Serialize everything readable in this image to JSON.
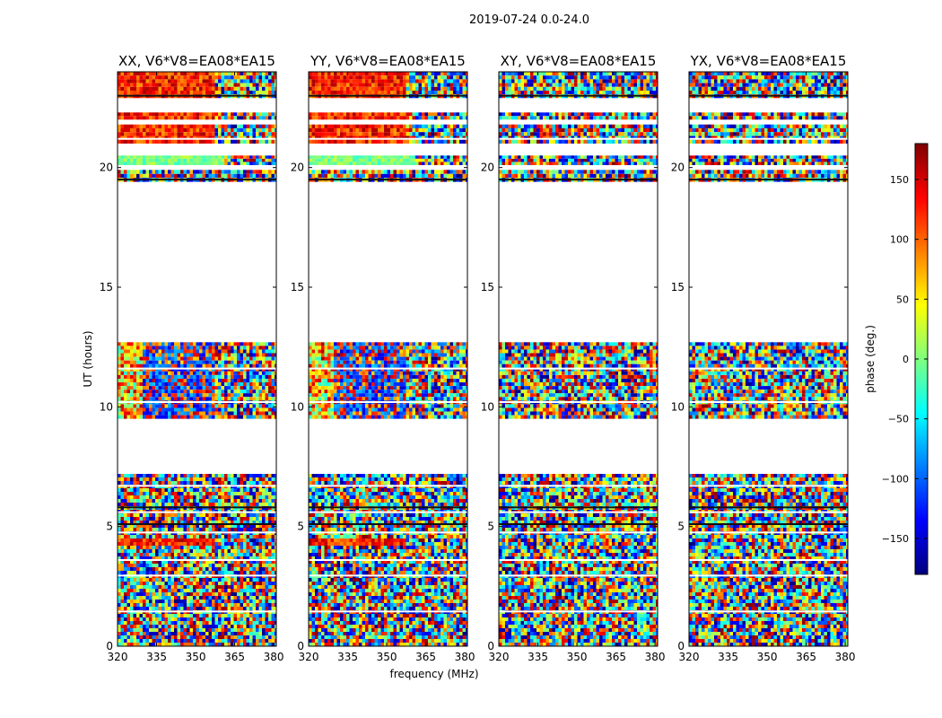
{
  "figure": {
    "suptitle": "2019-07-24 0.0-24.0",
    "xlabel": "frequency (MHz)",
    "ylabel": "UT (hours)"
  },
  "colorbar": {
    "label": "phase (deg.)",
    "range": [
      -180,
      180
    ],
    "ticks": [
      150,
      100,
      50,
      0,
      -50,
      -100,
      -150
    ],
    "tick_labels": [
      "150",
      "100",
      "50",
      "0",
      "−50",
      "−100",
      "−150"
    ],
    "colormap": "jet",
    "stops": [
      "#00007f",
      "#0000ff",
      "#007fff",
      "#00ffff",
      "#7fff7f",
      "#ffff00",
      "#ff7f00",
      "#ff0000",
      "#7f0000"
    ]
  },
  "chart_data": [
    {
      "type": "heatmap",
      "title": "XX, V6*V8=EA08*EA15",
      "xlim": [
        320,
        381
      ],
      "ylim": [
        0,
        24
      ],
      "xticks": [
        320,
        335,
        350,
        365,
        380
      ],
      "yticks": [
        0,
        5,
        10,
        15,
        20
      ],
      "data_blocks": [
        [
          0,
          4.2,
          "noise"
        ],
        [
          4.2,
          4.5,
          "warm"
        ],
        [
          4.5,
          7.2,
          "noise"
        ],
        [
          9.5,
          12.7,
          "mixed"
        ],
        [
          19.4,
          19.9,
          "noise"
        ],
        [
          20.1,
          20.5,
          "green"
        ],
        [
          21.0,
          21.8,
          "warm"
        ],
        [
          22.0,
          22.3,
          "warm"
        ],
        [
          22.9,
          24,
          "warm"
        ]
      ]
    },
    {
      "type": "heatmap",
      "title": "YY, V6*V8=EA08*EA15",
      "xlim": [
        320,
        381
      ],
      "ylim": [
        0,
        24
      ],
      "xticks": [
        320,
        335,
        350,
        365,
        380
      ],
      "yticks": [
        0,
        5,
        10,
        15,
        20
      ],
      "data_blocks": [
        [
          0,
          4.2,
          "noise"
        ],
        [
          4.2,
          4.5,
          "warm"
        ],
        [
          4.5,
          7.2,
          "noise"
        ],
        [
          9.5,
          12.7,
          "mixed"
        ],
        [
          19.4,
          19.9,
          "noise"
        ],
        [
          20.1,
          20.5,
          "green"
        ],
        [
          21.0,
          21.8,
          "warm"
        ],
        [
          22.0,
          22.3,
          "warm"
        ],
        [
          22.9,
          24,
          "warm"
        ]
      ]
    },
    {
      "type": "heatmap",
      "title": "XY, V6*V8=EA08*EA15",
      "xlim": [
        320,
        381
      ],
      "ylim": [
        0,
        24
      ],
      "xticks": [
        320,
        335,
        350,
        365,
        380
      ],
      "yticks": [
        0,
        5,
        10,
        15,
        20
      ],
      "data_blocks": [
        [
          0,
          4.2,
          "noise"
        ],
        [
          4.2,
          4.5,
          "noise"
        ],
        [
          4.5,
          7.2,
          "noise"
        ],
        [
          9.5,
          12.7,
          "noise"
        ],
        [
          19.4,
          19.9,
          "noise"
        ],
        [
          20.1,
          20.5,
          "noise"
        ],
        [
          21.0,
          21.8,
          "noise"
        ],
        [
          22.0,
          22.3,
          "noise"
        ],
        [
          22.9,
          24,
          "noise"
        ]
      ]
    },
    {
      "type": "heatmap",
      "title": "YX, V6*V8=EA08*EA15",
      "xlim": [
        320,
        381
      ],
      "ylim": [
        0,
        24
      ],
      "xticks": [
        320,
        335,
        350,
        365,
        380
      ],
      "yticks": [
        0,
        5,
        10,
        15,
        20
      ],
      "data_blocks": [
        [
          0,
          4.2,
          "noise"
        ],
        [
          4.2,
          4.5,
          "noise"
        ],
        [
          4.5,
          7.2,
          "noise"
        ],
        [
          9.5,
          12.7,
          "noise"
        ],
        [
          19.4,
          19.9,
          "noise"
        ],
        [
          20.1,
          20.5,
          "noise"
        ],
        [
          21.0,
          21.8,
          "noise"
        ],
        [
          22.0,
          22.3,
          "noise"
        ],
        [
          22.9,
          24,
          "noise"
        ]
      ]
    }
  ]
}
